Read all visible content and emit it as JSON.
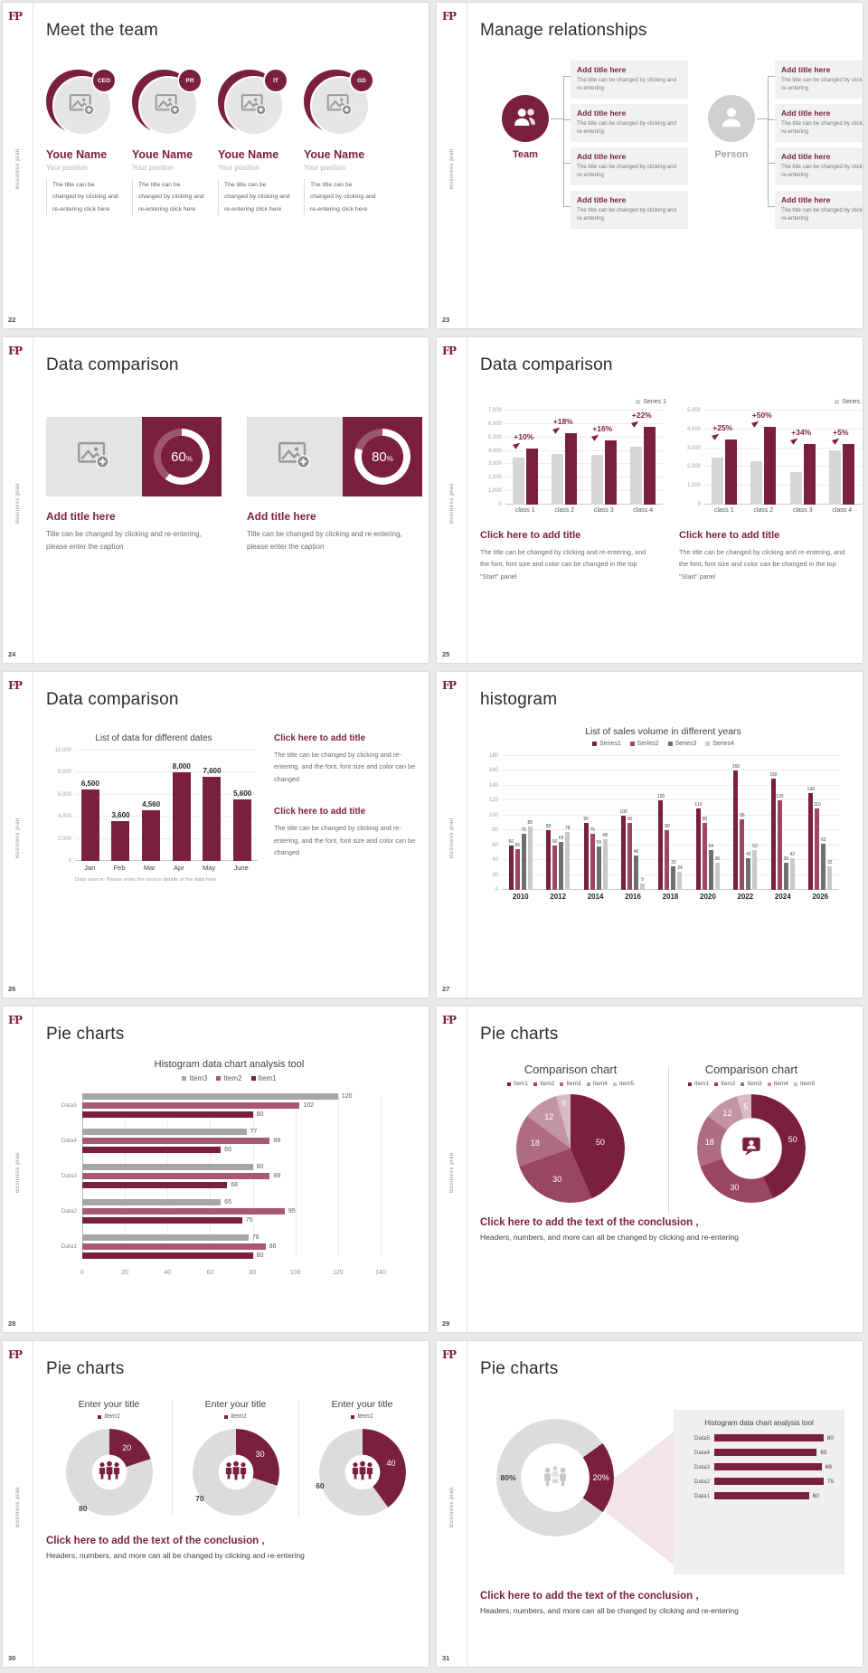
{
  "app": {
    "background": "#e9e9e9"
  },
  "brand": {
    "logo_text": "FP",
    "sidebar_label": "Business plan"
  },
  "colors": {
    "primary": "#7b1f3e",
    "primary_mid": "#9e4763",
    "rose": "#a85873",
    "primary_light": "#ae6d85",
    "primary_lighter": "#c294a5",
    "primary_lightest": "#d7bac6",
    "gray_bar": "#d6d6d6",
    "gray_mid": "#a6a6a6",
    "gray_dark": "#6f6f6f",
    "gray_light": "#c9c9c9"
  },
  "icons": [
    "image-placeholder-icon",
    "team-icon",
    "person-icon",
    "people-group-icon",
    "meeting-icon",
    "chat-person-icon",
    "dart-icon"
  ],
  "slides": {
    "s22": {
      "page": "22",
      "title": "Meet the team",
      "members": [
        {
          "badge": "CEO",
          "name": "Youe Name",
          "position": "Your position",
          "desc": "The title can be changed by clicking and re-entering click here"
        },
        {
          "badge": "PR",
          "name": "Youe Name",
          "position": "Your position",
          "desc": "The title can be changed by clicking and re-entering click here"
        },
        {
          "badge": "IT",
          "name": "Youe Name",
          "position": "Your position",
          "desc": "The title can be changed by clicking and re-entering click here"
        },
        {
          "badge": "GD",
          "name": "Youe Name",
          "position": "Your position",
          "desc": "The title can be changed by clicking and re-entering click here"
        }
      ]
    },
    "s23": {
      "page": "23",
      "title": "Manage relationships",
      "team_label": "Team",
      "person_label": "Person",
      "box_title": "Add title here",
      "box_body": "The title can be changed by clicking and re-entering"
    },
    "s24": {
      "page": "24",
      "title": "Data comparison",
      "items": [
        {
          "percent": "60",
          "unit": "%",
          "title": "Add title here",
          "caption": "Title can be changed by clicking and re-entering, please enter the caption"
        },
        {
          "percent": "80",
          "unit": "%",
          "title": "Add title here",
          "caption": "Title can be changed by clicking and re-entering, please enter the caption"
        }
      ]
    },
    "s25": {
      "page": "25",
      "title": "Data comparison",
      "legend": "Series 1",
      "block_title": "Click here to add title",
      "block_body": "The title can be changed by clicking and re-entering, and the font, font size and color can be changed in the top \"Start\" panel"
    },
    "s26": {
      "page": "26",
      "title": "Data comparison",
      "source_note": "Data source: Please enter the source details of the data here",
      "block_title": "Click here to add title",
      "block_body": "The title can be changed by clicking and re-entering, and the font, font size and color can be changed"
    },
    "s27": {
      "page": "27",
      "title": "histogram"
    },
    "s28": {
      "page": "28",
      "title": "Pie charts"
    },
    "s29": {
      "page": "29",
      "title": "Pie charts",
      "section_title": "Comparison chart",
      "conclusion_title": "Click here to add the text of the conclusion ,",
      "conclusion_body": "Headers, numbers, and more can all be changed by clicking and re-entering"
    },
    "s30": {
      "page": "30",
      "title": "Pie charts",
      "donut_title": "Enter your title",
      "legend": "Item1",
      "conclusion_title": "Click here to add the text of the conclusion ,",
      "conclusion_body": "Headers, numbers, and more can all be changed by clicking and re-entering"
    },
    "s31": {
      "page": "31",
      "title": "Pie charts",
      "left_pct": "80%",
      "slice_pct": "20%",
      "conclusion_title": "Click here to add the text of the conclusion ,",
      "conclusion_body": "Headers, numbers, and more can all be changed by clicking and re-entering"
    }
  },
  "chart_data": {
    "s25_left": {
      "type": "bar",
      "categories": [
        "class 1",
        "class 2",
        "class 3",
        "class 4"
      ],
      "series": [
        {
          "name": "baseline",
          "values": [
            3500,
            3800,
            3700,
            4300
          ]
        },
        {
          "name": "Series 1",
          "values": [
            4200,
            5300,
            4800,
            6300
          ]
        }
      ],
      "growth_labels": [
        "+10%",
        "+18%",
        "+16%",
        "+22%"
      ],
      "ylim": [
        0,
        7000
      ],
      "ystep": 1000,
      "legend": "Series 1"
    },
    "s25_right": {
      "type": "bar",
      "categories": [
        "class 1",
        "class 2",
        "class 3",
        "class 4"
      ],
      "series": [
        {
          "name": "baseline",
          "values": [
            2500,
            2300,
            1750,
            2900
          ]
        },
        {
          "name": "Series 1",
          "values": [
            3450,
            4200,
            3200,
            3200
          ]
        }
      ],
      "growth_labels": [
        "+25%",
        "+50%",
        "+34%",
        "+5%"
      ],
      "ylim": [
        0,
        5000
      ],
      "ystep": 1000,
      "legend": "Series 1"
    },
    "s26": {
      "type": "bar",
      "title": "List of data for different dates",
      "categories": [
        "Jan",
        "Feb",
        "Mar",
        "Apr",
        "May",
        "June"
      ],
      "values": [
        6500,
        3600,
        4560,
        8000,
        7600,
        5600
      ],
      "ylim": [
        0,
        10000
      ],
      "ystep": 2000
    },
    "s27": {
      "type": "bar",
      "title": "List of sales volume in different years",
      "categories": [
        "2010",
        "2012",
        "2014",
        "2016",
        "2018",
        "2020",
        "2022",
        "2024",
        "2026"
      ],
      "series": [
        {
          "name": "Series1",
          "values": [
            60,
            80,
            90,
            100,
            120,
            110,
            160,
            150,
            130
          ]
        },
        {
          "name": "Series2",
          "values": [
            55,
            60,
            75,
            90,
            80,
            90,
            95,
            120,
            110
          ]
        },
        {
          "name": "Series3",
          "values": [
            75,
            65,
            58,
            46,
            32,
            54,
            42,
            36,
            62
          ]
        },
        {
          "name": "Series4",
          "values": [
            85,
            78,
            68,
            9,
            24,
            36,
            53,
            42,
            32
          ]
        }
      ],
      "ylim": [
        0,
        180
      ],
      "ystep": 20
    },
    "s28": {
      "type": "hbar",
      "title": "Histogram data chart analysis tool",
      "legend": [
        "Item3",
        "Item2",
        "Item1"
      ],
      "categories": [
        "Data5",
        "Data4",
        "Data3",
        "Data2",
        "Data1"
      ],
      "series": [
        {
          "name": "Item3",
          "values": [
            120,
            77,
            80,
            65,
            78
          ]
        },
        {
          "name": "Item2",
          "values": [
            102,
            88,
            88,
            95,
            86
          ]
        },
        {
          "name": "Item1",
          "values": [
            80,
            65,
            68,
            75,
            80
          ]
        }
      ],
      "xlim": [
        0,
        140
      ],
      "xstep": 20
    },
    "s29": {
      "type": "pie",
      "titles": [
        "Comparison chart",
        "Comparison chart"
      ],
      "legend": [
        "Item1",
        "Item2",
        "Item3",
        "Item4",
        "Item5"
      ],
      "values": [
        50,
        30,
        18,
        12,
        5
      ]
    },
    "s30": {
      "type": "donut",
      "titles": [
        "Enter your title",
        "Enter your title",
        "Enter your title"
      ],
      "legend": "Item1",
      "donuts": [
        {
          "highlight": 20,
          "rest": 80
        },
        {
          "highlight": 30,
          "rest": 70
        },
        {
          "highlight": 40,
          "rest": 60
        }
      ]
    },
    "s31": {
      "type": "donut",
      "donut": {
        "highlight": 20,
        "rest": 80,
        "labels": [
          "20%",
          "80%"
        ]
      },
      "panel": {
        "title": "Histogram data chart analysis tool",
        "categories": [
          "Data5",
          "Data4",
          "Data3",
          "Data2",
          "Data1"
        ],
        "values": [
          80,
          65,
          68,
          75,
          60
        ]
      }
    }
  }
}
